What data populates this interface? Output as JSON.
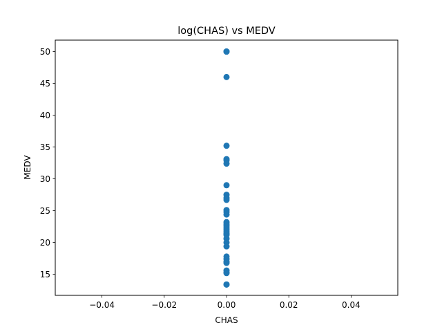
{
  "chart_data": {
    "type": "scatter",
    "title": "log(CHAS) vs MEDV",
    "xlabel": "CHAS",
    "ylabel": "MEDV",
    "xlim": [
      -0.055,
      0.055
    ],
    "ylim": [
      11.7,
      51.8
    ],
    "x_ticks": [
      -0.04,
      -0.02,
      0.0,
      0.02,
      0.04
    ],
    "x_tick_labels": [
      "−0.04",
      "−0.02",
      "0.00",
      "0.02",
      "0.04"
    ],
    "y_ticks": [
      15,
      20,
      25,
      30,
      35,
      40,
      45,
      50
    ],
    "y_tick_labels": [
      "15",
      "20",
      "25",
      "30",
      "35",
      "40",
      "45",
      "50"
    ],
    "grid": false,
    "marker_color": "#1f77b4",
    "series": [
      {
        "x": [
          0,
          0,
          0,
          0,
          0,
          0,
          0,
          0,
          0,
          0,
          0,
          0,
          0,
          0,
          0,
          0,
          0,
          0,
          0,
          0,
          0,
          0,
          0,
          0,
          0,
          0,
          0,
          0,
          0,
          0,
          0,
          0,
          0,
          0,
          0
        ],
        "y": [
          50.0,
          50.0,
          50.0,
          46.0,
          35.2,
          33.1,
          32.9,
          32.4,
          29.0,
          27.5,
          27.0,
          26.7,
          25.1,
          24.8,
          24.4,
          23.2,
          22.9,
          22.6,
          22.3,
          22.0,
          21.7,
          21.4,
          21.2,
          20.6,
          20.0,
          19.4,
          17.8,
          17.4,
          17.0,
          16.8,
          15.6,
          15.3,
          15.2,
          13.4,
          13.4
        ]
      }
    ]
  }
}
